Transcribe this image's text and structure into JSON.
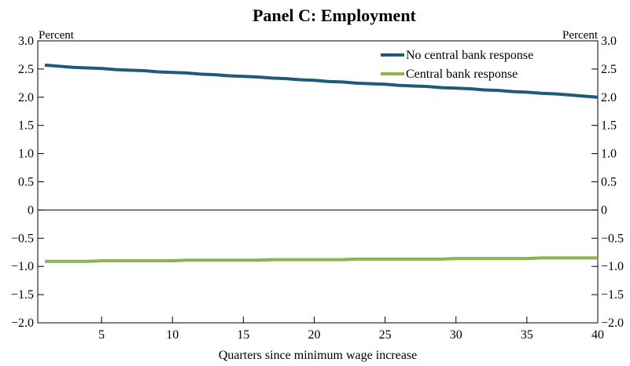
{
  "chart_data": {
    "type": "line",
    "title": "Panel C: Employment",
    "xlabel": "Quarters since minimum wage increase",
    "ylabel_left": "Percent",
    "ylabel_right": "Percent",
    "xlim": [
      0.5,
      40
    ],
    "ylim": [
      -2.0,
      3.0
    ],
    "xticks": [
      5,
      10,
      15,
      20,
      25,
      30,
      35,
      40
    ],
    "yticks": [
      -2.0,
      -1.5,
      -1.0,
      -0.5,
      0,
      0.5,
      1.0,
      1.5,
      2.0,
      2.5,
      3.0
    ],
    "ytick_labels": [
      "−2.0",
      "−1.5",
      "−1.0",
      "−0.5",
      "0",
      "0.5",
      "1.0",
      "1.5",
      "2.0",
      "2.5",
      "3.0"
    ],
    "grid": false,
    "legend_position": "top-right",
    "x": [
      1,
      2,
      3,
      4,
      5,
      6,
      7,
      8,
      9,
      10,
      11,
      12,
      13,
      14,
      15,
      16,
      17,
      18,
      19,
      20,
      21,
      22,
      23,
      24,
      25,
      26,
      27,
      28,
      29,
      30,
      31,
      32,
      33,
      34,
      35,
      36,
      37,
      38,
      39,
      40
    ],
    "series": [
      {
        "name": "No central bank response",
        "color": "#1e5b78",
        "values": [
          2.57,
          2.55,
          2.53,
          2.52,
          2.51,
          2.49,
          2.48,
          2.47,
          2.45,
          2.44,
          2.43,
          2.41,
          2.4,
          2.38,
          2.37,
          2.36,
          2.34,
          2.33,
          2.31,
          2.3,
          2.28,
          2.27,
          2.25,
          2.24,
          2.23,
          2.21,
          2.2,
          2.19,
          2.17,
          2.16,
          2.15,
          2.13,
          2.12,
          2.1,
          2.09,
          2.07,
          2.06,
          2.04,
          2.02,
          2.0
        ]
      },
      {
        "name": "Central bank response",
        "color": "#8ab54a",
        "values": [
          -0.91,
          -0.91,
          -0.91,
          -0.91,
          -0.9,
          -0.9,
          -0.9,
          -0.9,
          -0.9,
          -0.9,
          -0.89,
          -0.89,
          -0.89,
          -0.89,
          -0.89,
          -0.89,
          -0.88,
          -0.88,
          -0.88,
          -0.88,
          -0.88,
          -0.88,
          -0.87,
          -0.87,
          -0.87,
          -0.87,
          -0.87,
          -0.87,
          -0.87,
          -0.86,
          -0.86,
          -0.86,
          -0.86,
          -0.86,
          -0.86,
          -0.85,
          -0.85,
          -0.85,
          -0.85,
          -0.85
        ]
      }
    ],
    "axis_color": "#000000"
  }
}
